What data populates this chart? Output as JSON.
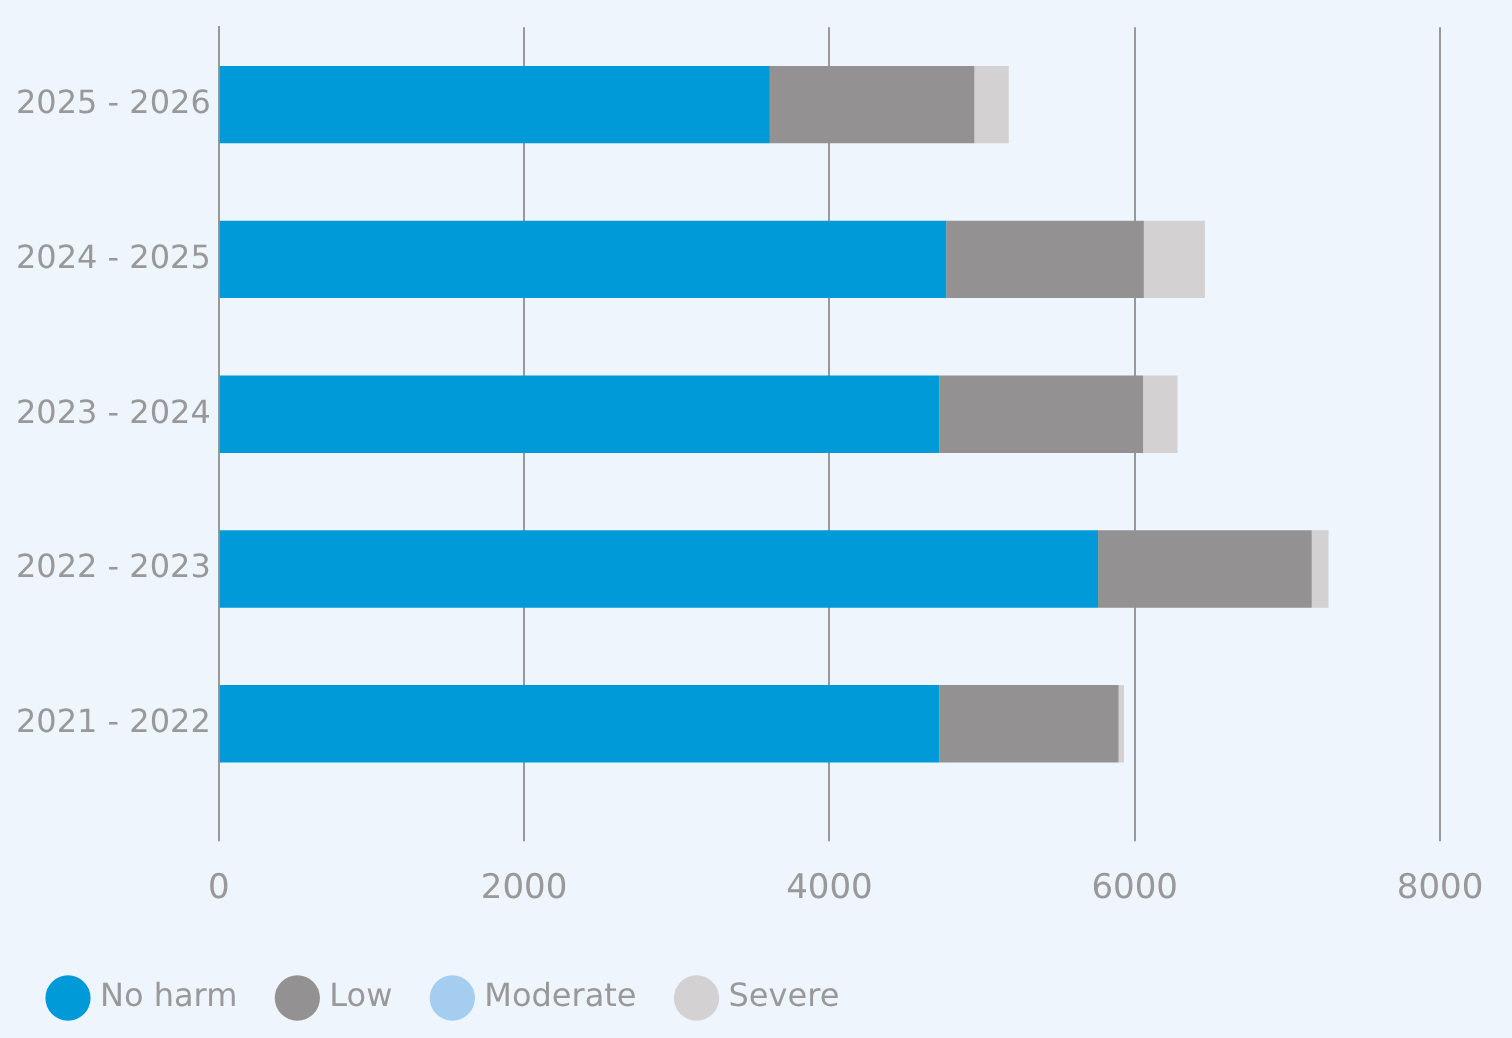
{
  "chart_data": {
    "type": "bar",
    "orientation": "horizontal",
    "stacked": true,
    "categories": [
      "2025 - 2026",
      "2024 - 2025",
      "2023 - 2024",
      "2022 - 2023",
      "2021 - 2022"
    ],
    "series": [
      {
        "name": "No harm",
        "color": "#009ad8",
        "values": [
          3610,
          4765,
          4720,
          5760,
          4720
        ]
      },
      {
        "name": "Low",
        "color": "#939192",
        "values": [
          1340,
          1295,
          1335,
          1400,
          1175
        ]
      },
      {
        "name": "Moderate",
        "color": "#a5cdf0",
        "values": [
          0,
          0,
          0,
          0,
          0
        ]
      },
      {
        "name": "Severe",
        "color": "#d3d1d2",
        "values": [
          225,
          400,
          225,
          110,
          35
        ]
      }
    ],
    "xlim": [
      0,
      8000
    ],
    "xticks": [
      0,
      2000,
      4000,
      6000,
      8000
    ],
    "grid": "x",
    "legend": "bottom"
  }
}
